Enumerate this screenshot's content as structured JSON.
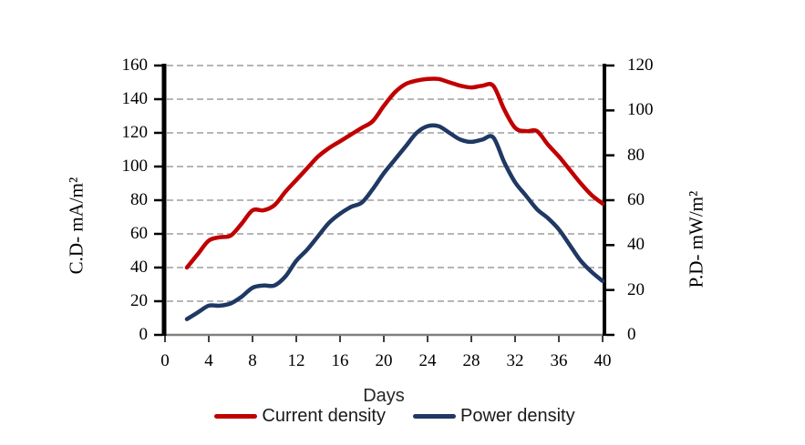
{
  "axes": {
    "x": {
      "label": "Days",
      "ticks": [
        0,
        4,
        8,
        12,
        16,
        20,
        24,
        28,
        32,
        36,
        40
      ],
      "min": 0,
      "max": 40
    },
    "y_left": {
      "label": "C.D- mA/m²",
      "ticks": [
        0,
        20,
        40,
        60,
        80,
        100,
        120,
        140,
        160
      ],
      "min": 0,
      "max": 160
    },
    "y_right": {
      "label": "P.D- mW/m²",
      "ticks": [
        0,
        20,
        40,
        60,
        80,
        100,
        120
      ],
      "min": 0,
      "max": 120
    }
  },
  "legend": [
    {
      "label": "Current density",
      "color": "#c00000"
    },
    {
      "label": "Power density",
      "color": "#1f3864"
    }
  ],
  "colors": {
    "current_density": "#c00000",
    "power_density": "#1f3864",
    "gridline": "#8a8a8a",
    "axis_black": "#000000",
    "axis_bottom_gray": "#808080"
  },
  "chart_data": {
    "type": "line",
    "title": "",
    "xlabel": "Days",
    "ylabel_left": "C.D- mA/m²",
    "ylabel_right": "P.D- mW/m²",
    "xlim": [
      0,
      40
    ],
    "ylim_left": [
      0,
      160
    ],
    "ylim_right": [
      0,
      120
    ],
    "grid": "horizontal-dashed",
    "legend_position": "bottom",
    "x": [
      2,
      3,
      4,
      5,
      6,
      7,
      8,
      9,
      10,
      11,
      12,
      13,
      14,
      15,
      16,
      17,
      18,
      19,
      20,
      21,
      22,
      23,
      24,
      25,
      26,
      27,
      28,
      29,
      30,
      31,
      32,
      33,
      34,
      35,
      36,
      37,
      38,
      39,
      40
    ],
    "series": [
      {
        "name": "Current density",
        "axis": "left",
        "units": "mA/m²",
        "color": "#c00000",
        "values": [
          40,
          48,
          56,
          58,
          59,
          66,
          74,
          74,
          77,
          85,
          92,
          99,
          106,
          111,
          115,
          119,
          123,
          127,
          136,
          144,
          149,
          151,
          152,
          152,
          150,
          148,
          147,
          148,
          148,
          134,
          123,
          121,
          121,
          113,
          106,
          98,
          90,
          83,
          78
        ]
      },
      {
        "name": "Power density",
        "axis": "right",
        "units": "mW/m²",
        "color": "#1f3864",
        "values": [
          7,
          10,
          13,
          13,
          14,
          17,
          21,
          22,
          22,
          26,
          33,
          38,
          44,
          50,
          54,
          57,
          59,
          65,
          72,
          78,
          84,
          90,
          93,
          93,
          90,
          87,
          86,
          87,
          88,
          77,
          68,
          62,
          56,
          52,
          47,
          40,
          33,
          28,
          24
        ]
      }
    ]
  }
}
